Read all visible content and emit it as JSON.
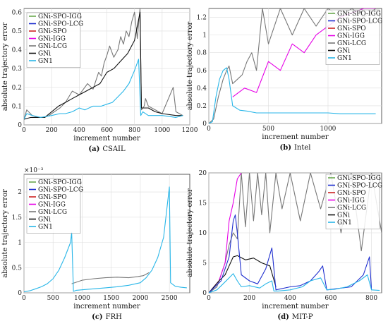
{
  "legend_entries": [
    "GNi-SPO-IGG",
    "GNi-SPO-LCG",
    "GNi-SPO",
    "GNi-IGG",
    "GNi-LCG",
    "GNi",
    "GN1"
  ],
  "colors": {
    "GNi-SPO-IGG": "#6aa84f",
    "GNi-SPO-LCG": "#1f2fcf",
    "GNi-SPO": "#cc2222",
    "GNi-IGG": "#e600e6",
    "GNi-LCG": "#777777",
    "GNi": "#111111",
    "GN1": "#28b6e8"
  },
  "chart_data": [
    {
      "type": "line",
      "caption_letter": "(a)",
      "caption_name": "CSAIL",
      "xlabel": "increment number",
      "ylabel": "absolute trajectory error",
      "xlim": [
        0,
        1200
      ],
      "ylim": [
        0,
        0.62
      ],
      "xticks": [
        0,
        200,
        400,
        600,
        800,
        1000,
        1200
      ],
      "yticks": [
        0,
        0.1,
        0.2,
        0.3,
        0.4,
        0.5,
        0.6
      ],
      "ytick_labels": [
        "0",
        "0.1",
        "0.2",
        "0.3",
        "0.4",
        "0.5",
        "0.6"
      ],
      "exponent_label": "",
      "legend_position": "top-left",
      "series": [
        {
          "name": "GNi-LCG",
          "x": [
            0,
            20,
            60,
            100,
            150,
            180,
            200,
            240,
            260,
            300,
            350,
            400,
            440,
            460,
            500,
            540,
            560,
            580,
            600,
            620,
            650,
            680,
            700,
            720,
            740,
            760,
            780,
            800,
            820,
            840,
            850,
            870,
            880,
            900,
            1000,
            1080,
            1100,
            1150
          ],
          "y": [
            0.03,
            0.08,
            0.05,
            0.04,
            0.04,
            0.05,
            0.06,
            0.08,
            0.09,
            0.12,
            0.18,
            0.16,
            0.2,
            0.22,
            0.19,
            0.28,
            0.26,
            0.33,
            0.37,
            0.42,
            0.36,
            0.4,
            0.47,
            0.43,
            0.5,
            0.47,
            0.55,
            0.6,
            0.46,
            0.62,
            0.08,
            0.1,
            0.14,
            0.1,
            0.06,
            0.2,
            0.07,
            0.05
          ]
        },
        {
          "name": "GNi",
          "x": [
            0,
            50,
            100,
            150,
            200,
            250,
            300,
            350,
            400,
            450,
            500,
            550,
            600,
            650,
            700,
            750,
            800,
            840,
            850,
            900,
            950,
            1000,
            1100,
            1150
          ],
          "y": [
            0.03,
            0.04,
            0.04,
            0.04,
            0.07,
            0.1,
            0.12,
            0.14,
            0.16,
            0.18,
            0.2,
            0.22,
            0.28,
            0.3,
            0.34,
            0.38,
            0.45,
            0.6,
            0.09,
            0.09,
            0.07,
            0.06,
            0.05,
            0.05
          ]
        },
        {
          "name": "GN1",
          "x": [
            0,
            20,
            60,
            120,
            200,
            260,
            300,
            350,
            400,
            440,
            500,
            560,
            600,
            640,
            680,
            720,
            760,
            800,
            830,
            845,
            860,
            900,
            1000,
            1100,
            1150
          ],
          "y": [
            0.03,
            0.06,
            0.05,
            0.04,
            0.05,
            0.06,
            0.06,
            0.07,
            0.09,
            0.08,
            0.1,
            0.1,
            0.11,
            0.12,
            0.15,
            0.18,
            0.22,
            0.29,
            0.35,
            0.05,
            0.07,
            0.05,
            0.05,
            0.04,
            0.05
          ]
        }
      ]
    },
    {
      "type": "line",
      "caption_letter": "(b)",
      "caption_name": "Intel",
      "xlabel": "increment number",
      "ylabel": "absolute trajectory error",
      "xlim": [
        0,
        1450
      ],
      "ylim": [
        0,
        1.3
      ],
      "xticks": [
        0,
        500,
        1000
      ],
      "yticks": [
        0,
        0.2,
        0.4,
        0.6,
        0.8,
        1,
        1.2
      ],
      "ytick_labels": [
        "0",
        "0.2",
        "0.4",
        "0.6",
        "0.8",
        "1",
        "1.2"
      ],
      "exponent_label": "",
      "legend_position": "top-right",
      "series": [
        {
          "name": "GNi-LCG",
          "x": [
            0,
            40,
            80,
            120,
            150,
            170,
            200,
            240,
            280,
            320,
            360,
            400,
            450,
            500,
            600,
            700,
            800,
            900,
            1000,
            1100,
            1200,
            1300,
            1400
          ],
          "y": [
            0.0,
            0.05,
            0.3,
            0.5,
            0.6,
            0.65,
            0.45,
            0.5,
            0.55,
            0.7,
            0.8,
            0.6,
            1.3,
            0.9,
            1.3,
            1.0,
            1.3,
            1.1,
            1.3,
            1.2,
            1.3,
            1.2,
            1.3
          ]
        },
        {
          "name": "GNi-IGG",
          "x": [
            200,
            300,
            400,
            500,
            600,
            700,
            800,
            900,
            1000,
            1100,
            1200,
            1300,
            1400
          ],
          "y": [
            0.3,
            0.4,
            0.35,
            0.7,
            0.6,
            0.9,
            0.8,
            1.0,
            1.1,
            1.2,
            1.25,
            1.3,
            1.3
          ]
        },
        {
          "name": "GN1",
          "x": [
            0,
            30,
            60,
            90,
            120,
            150,
            170,
            200,
            260,
            320,
            400,
            500,
            600,
            700,
            800,
            900,
            1000,
            1100,
            1200,
            1300,
            1400
          ],
          "y": [
            0.0,
            0.02,
            0.3,
            0.5,
            0.6,
            0.63,
            0.5,
            0.2,
            0.15,
            0.14,
            0.12,
            0.12,
            0.12,
            0.12,
            0.12,
            0.12,
            0.12,
            0.11,
            0.11,
            0.11,
            0.11
          ]
        }
      ]
    },
    {
      "type": "line",
      "caption_letter": "(c)",
      "caption_name": "FRH",
      "xlabel": "increment number",
      "ylabel": "absolute trajectory error",
      "xlim": [
        0,
        2850
      ],
      "ylim": [
        0,
        0.00235
      ],
      "xticks": [
        0,
        500,
        1000,
        1500,
        2000,
        2500
      ],
      "yticks": [
        0,
        0.0005,
        0.001,
        0.0015,
        0.002
      ],
      "ytick_labels": [
        "0",
        "0.5",
        "1",
        "1.5",
        "2"
      ],
      "exponent_label": "×10⁻³",
      "legend_position": "top-left",
      "series": [
        {
          "name": "GNi-LCG",
          "x": [
            820,
            1000,
            1200,
            1400,
            1600,
            1800,
            1950,
            2050,
            2150
          ],
          "y": [
            0.00018,
            0.00025,
            0.00028,
            0.0003,
            0.00031,
            0.0003,
            0.00032,
            0.00034,
            0.0004
          ]
        },
        {
          "name": "GN1",
          "x": [
            0,
            100,
            200,
            300,
            400,
            500,
            600,
            700,
            800,
            820,
            850,
            900,
            1000,
            1200,
            1400,
            1600,
            1800,
            2000,
            2100,
            2200,
            2300,
            2400,
            2450,
            2500,
            2520,
            2600,
            2700,
            2800
          ],
          "y": [
            2e-05,
            4e-05,
            8e-05,
            0.00012,
            0.00018,
            0.00028,
            0.00045,
            0.0007,
            0.001,
            0.0012,
            3e-05,
            5e-05,
            6e-05,
            8e-05,
            0.0001,
            0.00012,
            0.00015,
            0.0002,
            0.0003,
            0.00045,
            0.0007,
            0.0011,
            0.0016,
            0.0021,
            0.0002,
            0.00013,
            0.00011,
            0.0001
          ]
        }
      ]
    },
    {
      "type": "line",
      "caption_letter": "(d)",
      "caption_name": "MIT-P",
      "xlabel": "increment number",
      "ylabel": "absolute trajectory error",
      "xlim": [
        0,
        850
      ],
      "ylim": [
        0,
        20
      ],
      "xticks": [
        0,
        200,
        400,
        600,
        800
      ],
      "yticks": [
        0,
        5,
        10,
        15,
        20
      ],
      "ytick_labels": [
        "0",
        "5",
        "10",
        "15",
        "20"
      ],
      "exponent_label": "",
      "legend_position": "top-right",
      "series": [
        {
          "name": "GNi-LCG",
          "x": [
            0,
            40,
            80,
            100,
            120,
            140,
            160,
            180,
            200,
            220,
            240,
            260,
            280,
            300,
            330,
            360,
            400,
            450,
            500,
            550,
            600,
            650,
            700,
            750,
            800,
            850
          ],
          "y": [
            0,
            1,
            5,
            8,
            10,
            9,
            20,
            11,
            20,
            12,
            20,
            13,
            20,
            10,
            20,
            14,
            20,
            12,
            20,
            14,
            20,
            10,
            20,
            7,
            20,
            10
          ]
        },
        {
          "name": "GNi-IGG",
          "x": [
            0,
            50,
            80,
            100,
            120,
            140,
            160
          ],
          "y": [
            0,
            2,
            5,
            12,
            15,
            19,
            20
          ]
        },
        {
          "name": "GNi",
          "x": [
            0,
            50,
            80,
            100,
            120,
            140,
            180,
            220,
            260,
            300,
            330
          ],
          "y": [
            0,
            2,
            3,
            4.5,
            6,
            6.2,
            5.5,
            5.8,
            5,
            4.5,
            1
          ]
        },
        {
          "name": "GNi-SPO-LCG",
          "x": [
            0,
            60,
            100,
            120,
            130,
            140,
            160,
            200,
            240,
            280,
            310,
            330,
            400,
            450,
            500,
            540,
            560,
            580,
            700,
            760,
            790,
            800
          ],
          "y": [
            0,
            2,
            6,
            12,
            13,
            10,
            3,
            2,
            1.5,
            4,
            7.5,
            0.5,
            1,
            1.2,
            2,
            3.5,
            4.5,
            0.5,
            1,
            3,
            6,
            0.5
          ]
        },
        {
          "name": "GN1",
          "x": [
            0,
            40,
            70,
            100,
            120,
            140,
            160,
            200,
            250,
            280,
            310,
            320,
            340,
            400,
            460,
            500,
            550,
            580,
            620,
            680,
            740,
            780,
            800,
            840
          ],
          "y": [
            0,
            0.5,
            1.5,
            2.5,
            3.2,
            2,
            1,
            1.2,
            0.8,
            1.5,
            2,
            0.3,
            0.3,
            0.5,
            1,
            2,
            2.5,
            0.5,
            0.6,
            1,
            2,
            3,
            0.5,
            0.4
          ]
        }
      ]
    }
  ]
}
